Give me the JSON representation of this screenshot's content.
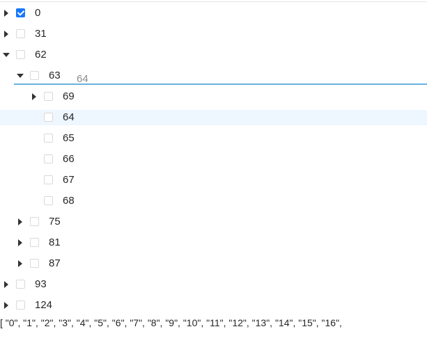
{
  "tree": {
    "nodes": [
      {
        "key": "0",
        "label": "0",
        "depth": 0,
        "expander": "collapsed",
        "checked": true
      },
      {
        "key": "31",
        "label": "31",
        "depth": 0,
        "expander": "collapsed",
        "checked": false
      },
      {
        "key": "62",
        "label": "62",
        "depth": 0,
        "expander": "expanded",
        "checked": false
      },
      {
        "key": "63",
        "label": "63",
        "depth": 1,
        "expander": "expanded",
        "checked": false
      },
      {
        "key": "69",
        "label": "69",
        "depth": 2,
        "expander": "collapsed",
        "checked": false
      },
      {
        "key": "64",
        "label": "64",
        "depth": 2,
        "expander": "none",
        "checked": false,
        "highlighted": true
      },
      {
        "key": "65",
        "label": "65",
        "depth": 2,
        "expander": "none",
        "checked": false
      },
      {
        "key": "66",
        "label": "66",
        "depth": 2,
        "expander": "none",
        "checked": false
      },
      {
        "key": "67",
        "label": "67",
        "depth": 2,
        "expander": "none",
        "checked": false
      },
      {
        "key": "68",
        "label": "68",
        "depth": 2,
        "expander": "none",
        "checked": false
      },
      {
        "key": "75",
        "label": "75",
        "depth": 1,
        "expander": "collapsed",
        "checked": false
      },
      {
        "key": "81",
        "label": "81",
        "depth": 1,
        "expander": "collapsed",
        "checked": false
      },
      {
        "key": "87",
        "label": "87",
        "depth": 1,
        "expander": "collapsed",
        "checked": false
      },
      {
        "key": "93",
        "label": "93",
        "depth": 0,
        "expander": "collapsed",
        "checked": false
      },
      {
        "key": "124",
        "label": "124",
        "depth": 0,
        "expander": "collapsed",
        "checked": false
      }
    ]
  },
  "drag": {
    "ghost_label": "64"
  },
  "output": {
    "text": "[ \"0\", \"1\", \"2\", \"3\", \"4\", \"5\", \"6\", \"7\", \"8\", \"9\", \"10\", \"11\", \"12\", \"13\", \"14\", \"15\", \"16\","
  },
  "colors": {
    "accent": "#1677ff",
    "highlight": "#eef6ff",
    "drop_line": "#69b1df"
  },
  "icons": {
    "collapsed": "caret-right-icon",
    "expanded": "caret-down-icon"
  }
}
